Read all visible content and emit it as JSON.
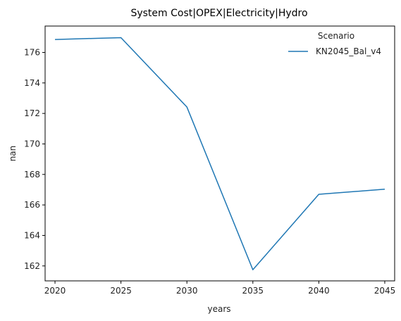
{
  "chart_data": {
    "type": "line",
    "title": "System Cost|OPEX|Electricity|Hydro",
    "xlabel": "years",
    "ylabel": "nan",
    "x": [
      2020,
      2025,
      2030,
      2035,
      2040,
      2045
    ],
    "xticks": [
      "2020",
      "2025",
      "2030",
      "2035",
      "2040",
      "2045"
    ],
    "yticks": [
      "162",
      "164",
      "166",
      "168",
      "170",
      "172",
      "174",
      "176"
    ],
    "xlim": [
      2019.25,
      2045.75
    ],
    "ylim": [
      161.02,
      177.73
    ],
    "grid": false,
    "legend": {
      "title": "Scenario",
      "placement": "top-right"
    },
    "series": [
      {
        "name": "KN2045_Bal_v4",
        "color": "#1f77b4",
        "values": [
          176.85,
          176.97,
          172.42,
          161.75,
          166.7,
          167.03
        ]
      }
    ]
  }
}
